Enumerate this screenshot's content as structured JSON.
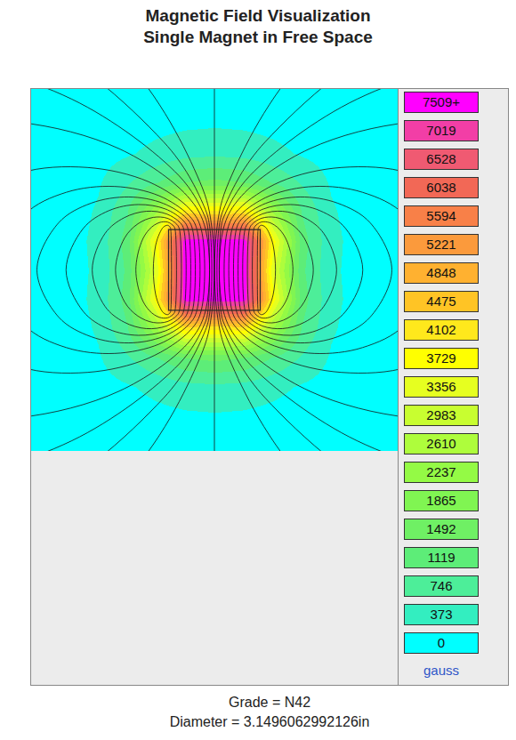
{
  "chart_data": {
    "type": "heatmap",
    "title": "Magnetic Field Visualization",
    "subtitle": "Single Magnet in Free Space",
    "annotations": [
      "Grade = N42",
      "Diameter = 3.1496062992126in"
    ],
    "xlim": [
      -6.3,
      6.3
    ],
    "ylim": [
      -6.2,
      6.2
    ],
    "tick_labels": false,
    "grid": false,
    "field": {
      "x": [
        -6,
        -5,
        -4,
        -3,
        -2,
        -1,
        0,
        1,
        2,
        3,
        4,
        5,
        6
      ],
      "y": [
        -6,
        -5,
        -4,
        -3,
        -2,
        -1,
        0,
        1,
        2,
        3,
        4,
        5,
        6
      ],
      "z": [
        [
          55,
          80,
          100,
          130,
          160,
          180,
          190,
          180,
          160,
          130,
          100,
          80,
          55
        ],
        [
          70,
          110,
          150,
          200,
          260,
          310,
          330,
          310,
          260,
          200,
          150,
          110,
          70
        ],
        [
          85,
          130,
          220,
          330,
          480,
          600,
          650,
          600,
          480,
          330,
          220,
          130,
          85
        ],
        [
          100,
          170,
          330,
          700,
          1100,
          1500,
          1600,
          1500,
          1100,
          700,
          330,
          170,
          100
        ],
        [
          120,
          200,
          420,
          1100,
          2600,
          4300,
          4200,
          4300,
          2600,
          1100,
          420,
          200,
          120
        ],
        [
          130,
          220,
          480,
          1300,
          4000,
          7800,
          7800,
          7800,
          4000,
          1300,
          480,
          220,
          130
        ],
        [
          130,
          220,
          450,
          1200,
          3500,
          7800,
          7800,
          7800,
          3500,
          1200,
          450,
          220,
          130
        ],
        [
          130,
          220,
          480,
          1300,
          4000,
          7800,
          7800,
          7800,
          4000,
          1300,
          480,
          220,
          130
        ],
        [
          120,
          200,
          420,
          1100,
          2600,
          4300,
          4200,
          4300,
          2600,
          1100,
          420,
          200,
          120
        ],
        [
          100,
          170,
          330,
          700,
          1100,
          1500,
          1600,
          1500,
          1100,
          700,
          330,
          170,
          100
        ],
        [
          85,
          130,
          220,
          330,
          480,
          600,
          650,
          600,
          480,
          330,
          220,
          130,
          85
        ],
        [
          70,
          110,
          150,
          200,
          260,
          310,
          330,
          310,
          260,
          200,
          150,
          110,
          70
        ],
        [
          55,
          80,
          100,
          130,
          160,
          180,
          190,
          180,
          160,
          130,
          100,
          80,
          55
        ]
      ]
    },
    "color_bar": {
      "range": [
        0,
        7509
      ],
      "ticks": [
        0,
        373,
        746,
        1119,
        1492,
        1865,
        2237,
        2610,
        2983,
        3356,
        3729,
        4102,
        4475,
        4848,
        5221,
        5594,
        6038,
        6528,
        7019,
        {
          "value": 7509,
          "label": "7509+"
        }
      ],
      "colors": [
        "#00ffff",
        "#33eec0",
        "#4dee99",
        "#5ded78",
        "#6ff064",
        "#80f552",
        "#94fa45",
        "#aefd3c",
        "#c8fe30",
        "#e6ff20",
        "#ffff00",
        "#ffe81c",
        "#ffc425",
        "#ffb130",
        "#fb9a3c",
        "#f88048",
        "#f26856",
        "#f05a72",
        "#f23ea6",
        "#ff00ff"
      ],
      "unit": "gauss"
    },
    "magnet": {
      "x": [
        -1.575,
        1.575
      ],
      "y": [
        -1.38,
        1.38
      ]
    },
    "field_lines": [
      {
        "x": [
          0,
          0
        ],
        "y": [
          -7,
          7
        ]
      },
      {
        "x": [
          1.5,
          1.52,
          1.61,
          1.75,
          1.89,
          2.02,
          2.1,
          2.02,
          1.89,
          1.75,
          1.61,
          1.52,
          1.5,
          1.5
        ],
        "y": [
          1.38,
          1.46,
          1.53,
          1.47,
          1.24,
          0.84,
          0,
          -0.84,
          -1.24,
          -1.47,
          -1.53,
          -1.46,
          -1.38,
          1.38
        ]
      },
      {
        "x": [
          1.35,
          1.4,
          1.61,
          1.9,
          2.23,
          2.51,
          2.7,
          2.51,
          2.23,
          1.9,
          1.61,
          1.4,
          1.35,
          1.35
        ],
        "y": [
          1.38,
          1.5,
          1.64,
          1.62,
          1.4,
          0.95,
          0,
          -0.95,
          -1.4,
          -1.62,
          -1.64,
          -1.5,
          -1.38,
          1.38
        ]
      },
      {
        "x": [
          1.2,
          1.29,
          1.62,
          2.1,
          2.63,
          3.09,
          3.4,
          3.09,
          2.63,
          2.1,
          1.62,
          1.29,
          1.2,
          1.2
        ],
        "y": [
          1.38,
          1.56,
          1.77,
          1.8,
          1.58,
          1.09,
          0,
          -1.09,
          -1.58,
          -1.8,
          -1.77,
          -1.56,
          -1.38,
          1.38
        ]
      },
      {
        "x": [
          1.05,
          1.18,
          1.65,
          2.34,
          3.1,
          3.76,
          4.2,
          3.76,
          3.1,
          2.34,
          1.65,
          1.18,
          1.05,
          1.05
        ],
        "y": [
          1.38,
          1.62,
          1.92,
          2.01,
          1.79,
          1.25,
          0,
          -1.25,
          -1.79,
          -2.01,
          -1.92,
          -1.62,
          -1.38,
          1.38
        ]
      },
      {
        "x": [
          0.9,
          1.07,
          1.69,
          2.62,
          3.63,
          4.51,
          5.1,
          4.51,
          3.63,
          2.62,
          1.69,
          1.07,
          0.9,
          0.9
        ],
        "y": [
          1.38,
          1.69,
          2.09,
          2.24,
          2.03,
          1.42,
          0,
          -1.42,
          -2.03,
          -2.24,
          -2.09,
          -1.69,
          -1.38,
          1.38
        ]
      },
      {
        "x": [
          0.75,
          0.96,
          1.76,
          2.94,
          4.23,
          5.35,
          6.1,
          5.35,
          4.23,
          2.94,
          1.76,
          0.96,
          0.75,
          0.75
        ],
        "y": [
          1.38,
          1.77,
          2.28,
          2.5,
          2.29,
          1.62,
          0,
          -1.62,
          -2.29,
          -2.5,
          -2.28,
          -1.77,
          -1.38,
          1.38
        ]
      },
      {
        "x": [
          0.6,
          0.88,
          1.9,
          3.43,
          5.09,
          6.53,
          7.5,
          6.53,
          5.09,
          3.43,
          1.9,
          0.88,
          0.6,
          0.6
        ],
        "y": [
          1.38,
          1.87,
          2.54,
          2.86,
          2.66,
          1.89,
          0,
          -1.89,
          -2.66,
          -2.86,
          -2.54,
          -1.87,
          -1.38,
          1.38
        ]
      },
      {
        "x": [
          0.45,
          0.83,
          2.26,
          4.37,
          6.66,
          8.21,
          10,
          8.21,
          6.66,
          4.37,
          2.26,
          0.83,
          0.45,
          0.45
        ],
        "y": [
          1.38,
          2.07,
          3.02,
          3.51,
          3.32,
          2.38,
          0,
          -2.38,
          -3.32,
          -3.51,
          -3.02,
          -2.07,
          -1.38,
          1.38
        ]
      },
      {
        "x": [
          0.3,
          0.93,
          3.27,
          6.74,
          10.5,
          13.8,
          16,
          13.8,
          10.5,
          6.74,
          3.27,
          0.93,
          0.3,
          0.3
        ],
        "y": [
          1.38,
          2.53,
          4.15,
          5.06,
          4.89,
          3.56,
          0,
          -3.56,
          -4.89,
          -5.06,
          -4.15,
          -2.53,
          -1.38,
          1.38
        ]
      },
      {
        "x": [
          0.22,
          0.35,
          1.21,
          4.9,
          10.38,
          16.3,
          25,
          16.3,
          10.38,
          4.9,
          1.21,
          0.35,
          0.22,
          0.22
        ],
        "y": [
          1.38,
          1.88,
          3.22,
          5.85,
          7.39,
          7.26,
          0,
          -7.26,
          -7.39,
          -5.85,
          -3.22,
          -1.88,
          -1.38,
          1.38
        ]
      },
      {
        "x": [
          0.15,
          0.36,
          1.74,
          7.68,
          26,
          40,
          26,
          7.68,
          1.74,
          0.36,
          0.15,
          0.15
        ],
        "y": [
          1.38,
          2.19,
          4.38,
          8.67,
          11.19,
          0,
          -11.19,
          -8.67,
          -4.38,
          -2.19,
          -1.38,
          1.38
        ]
      },
      {
        "x": [
          0.08,
          0.5,
          3.28,
          15.2,
          80,
          15.2,
          3.28,
          0.5,
          0.08,
          0.08
        ],
        "y": [
          1.38,
          3.02,
          7.45,
          16.2,
          0,
          -16.2,
          -7.45,
          -3.02,
          -1.38,
          1.38
        ]
      },
      {
        "x": [
          -1.5,
          -1.52,
          -1.61,
          -1.75,
          -1.89,
          -2.02,
          -2.1,
          -2.02,
          -1.89,
          -1.75,
          -1.61,
          -1.52,
          -1.5,
          -1.5
        ],
        "y": [
          1.38,
          1.46,
          1.53,
          1.47,
          1.24,
          0.84,
          0,
          -0.84,
          -1.24,
          -1.47,
          -1.53,
          -1.46,
          -1.38,
          1.38
        ]
      },
      {
        "x": [
          -1.35,
          -1.4,
          -1.61,
          -1.9,
          -2.23,
          -2.51,
          -2.7,
          -2.51,
          -2.23,
          -1.9,
          -1.61,
          -1.4,
          -1.35,
          -1.35
        ],
        "y": [
          1.38,
          1.5,
          1.64,
          1.62,
          1.4,
          0.95,
          0,
          -0.95,
          -1.4,
          -1.62,
          -1.64,
          -1.5,
          -1.38,
          1.38
        ]
      },
      {
        "x": [
          -1.2,
          -1.29,
          -1.62,
          -2.1,
          -2.63,
          -3.09,
          -3.4,
          -3.09,
          -2.63,
          -2.1,
          -1.62,
          -1.29,
          -1.2,
          -1.2
        ],
        "y": [
          1.38,
          1.56,
          1.77,
          1.8,
          1.58,
          1.09,
          0,
          -1.09,
          -1.58,
          -1.8,
          -1.77,
          -1.56,
          -1.38,
          1.38
        ]
      },
      {
        "x": [
          -1.05,
          -1.18,
          -1.65,
          -2.34,
          -3.1,
          -3.76,
          -4.2,
          -3.76,
          -3.1,
          -2.34,
          -1.65,
          -1.18,
          -1.05,
          -1.05
        ],
        "y": [
          1.38,
          1.62,
          1.92,
          2.01,
          1.79,
          1.25,
          0,
          -1.25,
          -1.79,
          -2.01,
          -1.92,
          -1.62,
          -1.38,
          1.38
        ]
      },
      {
        "x": [
          -0.9,
          -1.07,
          -1.69,
          -2.62,
          -3.63,
          -4.51,
          -5.1,
          -4.51,
          -3.63,
          -2.62,
          -1.69,
          -1.07,
          -0.9,
          -0.9
        ],
        "y": [
          1.38,
          1.69,
          2.09,
          2.24,
          2.03,
          1.42,
          0,
          -1.42,
          -2.03,
          -2.24,
          -2.09,
          -1.69,
          -1.38,
          1.38
        ]
      },
      {
        "x": [
          -0.75,
          -0.96,
          -1.76,
          -2.94,
          -4.23,
          -5.35,
          -6.1,
          -5.35,
          -4.23,
          -2.94,
          -1.76,
          -0.96,
          -0.75,
          -0.75
        ],
        "y": [
          1.38,
          1.77,
          2.28,
          2.5,
          2.29,
          1.62,
          0,
          -1.62,
          -2.29,
          -2.5,
          -2.28,
          -1.77,
          -1.38,
          1.38
        ]
      },
      {
        "x": [
          -0.6,
          -0.88,
          -1.9,
          -3.43,
          -5.09,
          -6.53,
          -7.5,
          -6.53,
          -5.09,
          -3.43,
          -1.9,
          -0.88,
          -0.6,
          -0.6
        ],
        "y": [
          1.38,
          1.87,
          2.54,
          2.86,
          2.66,
          1.89,
          0,
          -1.89,
          -2.66,
          -2.86,
          -2.54,
          -1.87,
          -1.38,
          1.38
        ]
      },
      {
        "x": [
          -0.45,
          -0.83,
          -2.26,
          -4.37,
          -6.66,
          -8.21,
          -10,
          -8.21,
          -6.66,
          -4.37,
          -2.26,
          -0.83,
          -0.45,
          -0.45
        ],
        "y": [
          1.38,
          2.07,
          3.02,
          3.51,
          3.32,
          2.38,
          0,
          -2.38,
          -3.32,
          -3.51,
          -3.02,
          -2.07,
          -1.38,
          1.38
        ]
      },
      {
        "x": [
          -0.3,
          -0.93,
          -3.27,
          -6.74,
          -10.5,
          -13.8,
          -16,
          -13.8,
          -10.5,
          -6.74,
          -3.27,
          -0.93,
          -0.3,
          -0.3
        ],
        "y": [
          1.38,
          2.53,
          4.15,
          5.06,
          4.89,
          3.56,
          0,
          -3.56,
          -4.89,
          -5.06,
          -4.15,
          -2.53,
          -1.38,
          1.38
        ]
      },
      {
        "x": [
          -0.22,
          -0.35,
          -1.21,
          -4.9,
          -10.38,
          -16.3,
          -25,
          -16.3,
          -10.38,
          -4.9,
          -1.21,
          -0.35,
          -0.22,
          -0.22
        ],
        "y": [
          1.38,
          1.88,
          3.22,
          5.85,
          7.39,
          7.26,
          0,
          -7.26,
          -7.39,
          -5.85,
          -3.22,
          -1.88,
          -1.38,
          1.38
        ]
      },
      {
        "x": [
          -0.15,
          -0.36,
          -1.74,
          -7.68,
          -26,
          -40,
          -26,
          -7.68,
          -1.74,
          -0.36,
          -0.15,
          -0.15
        ],
        "y": [
          1.38,
          2.19,
          4.38,
          8.67,
          11.19,
          0,
          -11.19,
          -8.67,
          -4.38,
          -2.19,
          -1.38,
          1.38
        ]
      },
      {
        "x": [
          -0.08,
          -0.5,
          -3.28,
          -15.2,
          -80,
          -15.2,
          -3.28,
          -0.5,
          -0.08,
          -0.08
        ],
        "y": [
          1.38,
          3.02,
          7.45,
          16.2,
          0,
          -16.2,
          -7.45,
          -3.02,
          -1.38,
          1.38
        ]
      }
    ]
  }
}
